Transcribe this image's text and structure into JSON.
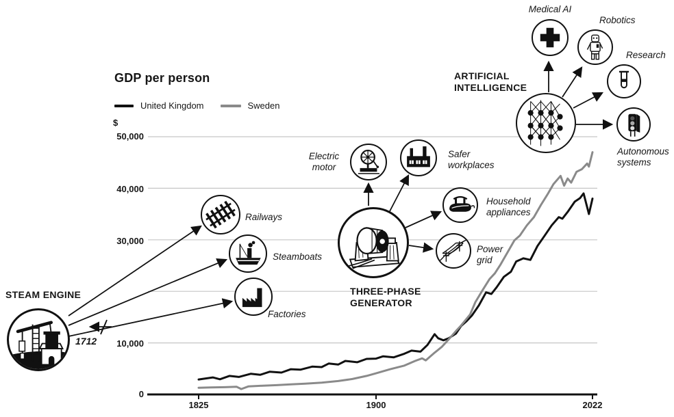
{
  "chart": {
    "title": "GDP per person",
    "currency_symbol": "$",
    "legend": [
      {
        "label": "United Kingdom",
        "color": "#111111"
      },
      {
        "label": "Sweden",
        "color": "#8a8a8a"
      }
    ],
    "y_tick_labels": [
      "50,000",
      "40,000",
      "30,000",
      "10,000",
      "0"
    ],
    "x_tick_labels": [
      "1825",
      "1900",
      "2022"
    ],
    "grid_color": "#c5c5c5"
  },
  "innovations": {
    "steam_engine": {
      "title": "STEAM ENGINE",
      "year_label": "1712",
      "icon": "steam-engine-icon",
      "spokes": [
        {
          "label": "Railways",
          "icon": "railway-track-icon"
        },
        {
          "label": "Steamboats",
          "icon": "steamboat-icon"
        },
        {
          "label": "Factories",
          "icon": "factory-icon"
        }
      ]
    },
    "three_phase_generator": {
      "title": "THREE-PHASE\nGENERATOR",
      "icon": "generator-icon",
      "spokes": [
        {
          "label": "Electric\nmotor",
          "icon": "electric-motor-icon"
        },
        {
          "label": "Safer\nworkplaces",
          "icon": "factory-windows-icon"
        },
        {
          "label": "Household\nappliances",
          "icon": "flat-iron-icon"
        },
        {
          "label": "Power\ngrid",
          "icon": "power-lines-icon"
        }
      ]
    },
    "artificial_intelligence": {
      "title": "ARTIFICIAL\nINTELLIGENCE",
      "icon": "neural-network-icon",
      "spokes": [
        {
          "label": "Medical AI",
          "icon": "medical-cross-icon"
        },
        {
          "label": "Robotics",
          "icon": "robot-icon"
        },
        {
          "label": "Research",
          "icon": "test-tube-icon"
        },
        {
          "label": "Autonomous\nsystems",
          "icon": "traffic-light-icon"
        }
      ]
    }
  },
  "chart_data": {
    "type": "line",
    "title": "GDP per person",
    "ylabel": "$",
    "ylim": [
      0,
      50000
    ],
    "yticks": [
      0,
      10000,
      20000,
      30000,
      40000,
      50000
    ],
    "ytick_labels_visible": [
      "0",
      "10,000",
      "",
      "30,000",
      "40,000",
      "50,000"
    ],
    "xticks": [
      1825,
      1900,
      2022
    ],
    "grid": true,
    "legend_position": "top-left",
    "series": [
      {
        "name": "United Kingdom",
        "color": "#111111",
        "points": [
          [
            1825,
            2900
          ],
          [
            1831,
            3300
          ],
          [
            1834,
            2950
          ],
          [
            1838,
            3600
          ],
          [
            1842,
            3400
          ],
          [
            1847,
            4000
          ],
          [
            1851,
            3800
          ],
          [
            1855,
            4400
          ],
          [
            1860,
            4250
          ],
          [
            1864,
            4900
          ],
          [
            1868,
            4800
          ],
          [
            1873,
            5400
          ],
          [
            1877,
            5300
          ],
          [
            1880,
            6000
          ],
          [
            1884,
            5800
          ],
          [
            1887,
            6500
          ],
          [
            1892,
            6250
          ],
          [
            1896,
            6900
          ],
          [
            1900,
            6950
          ],
          [
            1904,
            7400
          ],
          [
            1910,
            7200
          ],
          [
            1916,
            7900
          ],
          [
            1920,
            8500
          ],
          [
            1925,
            8300
          ],
          [
            1929,
            9600
          ],
          [
            1933,
            11700
          ],
          [
            1935,
            10900
          ],
          [
            1938,
            10500
          ],
          [
            1941,
            10900
          ],
          [
            1945,
            11800
          ],
          [
            1948,
            13300
          ],
          [
            1951,
            14200
          ],
          [
            1954,
            15300
          ],
          [
            1958,
            17300
          ],
          [
            1962,
            19800
          ],
          [
            1965,
            19500
          ],
          [
            1968,
            20800
          ],
          [
            1972,
            22800
          ],
          [
            1976,
            23800
          ],
          [
            1979,
            25800
          ],
          [
            1983,
            26400
          ],
          [
            1987,
            26100
          ],
          [
            1991,
            28800
          ],
          [
            1995,
            30800
          ],
          [
            1999,
            32800
          ],
          [
            2003,
            34400
          ],
          [
            2005,
            34100
          ],
          [
            2008,
            35400
          ],
          [
            2012,
            37400
          ],
          [
            2015,
            38100
          ],
          [
            2017,
            39000
          ],
          [
            2020,
            35000
          ],
          [
            2022,
            38000
          ]
        ]
      },
      {
        "name": "Sweden",
        "color": "#8a8a8a",
        "points": [
          [
            1825,
            1300
          ],
          [
            1830,
            1350
          ],
          [
            1836,
            1400
          ],
          [
            1841,
            1500
          ],
          [
            1843,
            1050
          ],
          [
            1846,
            1550
          ],
          [
            1852,
            1700
          ],
          [
            1858,
            1800
          ],
          [
            1864,
            1950
          ],
          [
            1870,
            2100
          ],
          [
            1877,
            2300
          ],
          [
            1884,
            2600
          ],
          [
            1890,
            3000
          ],
          [
            1896,
            3600
          ],
          [
            1900,
            4100
          ],
          [
            1908,
            4900
          ],
          [
            1916,
            5600
          ],
          [
            1922,
            6500
          ],
          [
            1926,
            7000
          ],
          [
            1928,
            6600
          ],
          [
            1933,
            8100
          ],
          [
            1937,
            9200
          ],
          [
            1941,
            10700
          ],
          [
            1945,
            12300
          ],
          [
            1948,
            13400
          ],
          [
            1953,
            15500
          ],
          [
            1956,
            17900
          ],
          [
            1960,
            20200
          ],
          [
            1964,
            22400
          ],
          [
            1967,
            23500
          ],
          [
            1970,
            25100
          ],
          [
            1974,
            27500
          ],
          [
            1978,
            29900
          ],
          [
            1981,
            30800
          ],
          [
            1985,
            32800
          ],
          [
            1989,
            34400
          ],
          [
            1993,
            36800
          ],
          [
            1997,
            39000
          ],
          [
            2000,
            40800
          ],
          [
            2004,
            42400
          ],
          [
            2006,
            40500
          ],
          [
            2008,
            41900
          ],
          [
            2010,
            41100
          ],
          [
            2013,
            43200
          ],
          [
            2016,
            43700
          ],
          [
            2019,
            44800
          ],
          [
            2020,
            44200
          ],
          [
            2022,
            47000
          ]
        ]
      }
    ],
    "annotations": [
      {
        "label": "STEAM ENGINE",
        "year": 1712,
        "applications": [
          "Railways",
          "Steamboats",
          "Factories"
        ]
      },
      {
        "label": "THREE-PHASE GENERATOR",
        "applications": [
          "Electric motor",
          "Safer workplaces",
          "Household appliances",
          "Power grid"
        ]
      },
      {
        "label": "ARTIFICIAL INTELLIGENCE",
        "applications": [
          "Medical AI",
          "Robotics",
          "Research",
          "Autonomous systems"
        ]
      }
    ]
  }
}
